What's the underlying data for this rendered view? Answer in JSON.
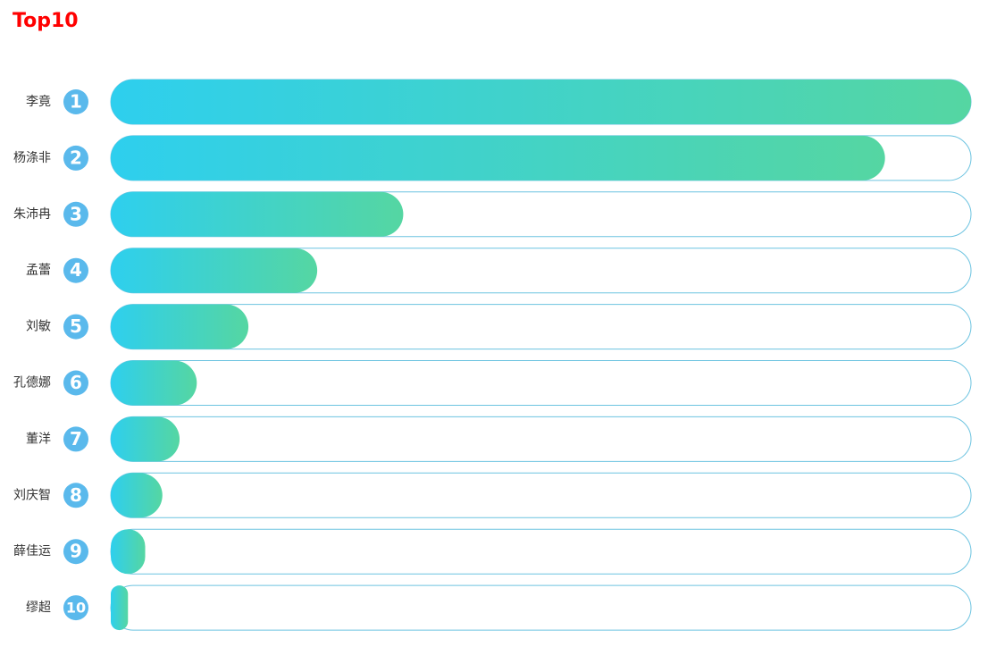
{
  "chart_data": {
    "type": "bar",
    "title": "Top10",
    "categories": [
      "李竟",
      "杨涤非",
      "朱沛冉",
      "孟蕾",
      "刘敏",
      "孔德娜",
      "董洋",
      "刘庆智",
      "薛佳运",
      "缪超"
    ],
    "ranks": [
      1,
      2,
      3,
      4,
      5,
      6,
      7,
      8,
      9,
      10
    ],
    "values": [
      100,
      90,
      34,
      24,
      16,
      10,
      8,
      6,
      4,
      2
    ],
    "color_start": "#2ecfee",
    "color_end": "#55d6a2",
    "track_color": "#6cc3e0",
    "rank_color": "#5ab9ec",
    "title_color": "#ff0000"
  }
}
